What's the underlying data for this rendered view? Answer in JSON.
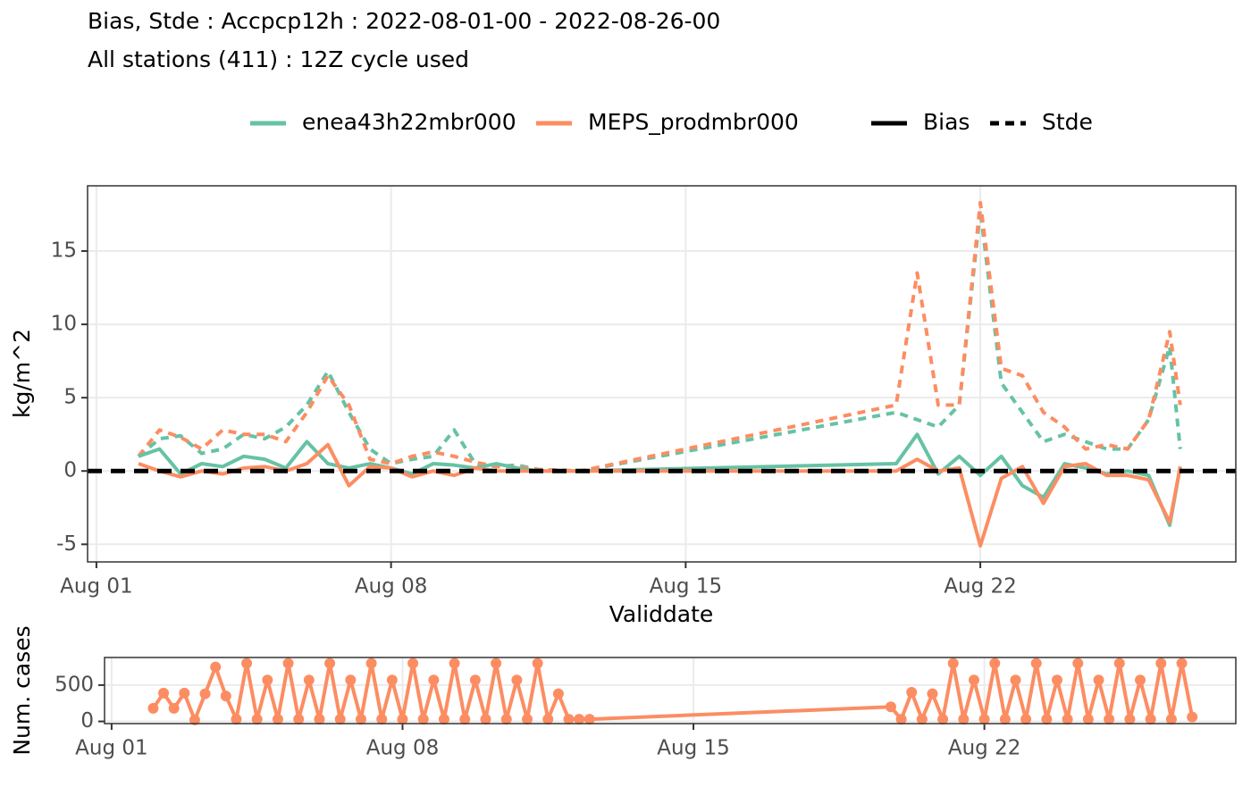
{
  "chart_data": [
    {
      "type": "line",
      "title": "Bias, Stde : Accpcp12h : 2022-08-01-00 - 2022-08-26-00",
      "subtitle": "All stations (411) : 12Z cycle used",
      "x_label": "Validdate",
      "y_label": "kg/m^2",
      "metrics": [
        "Bias",
        "Stde"
      ],
      "dashed": [
        false,
        true
      ],
      "hline": 0,
      "x": [
        2,
        2.5,
        3,
        3.5,
        4,
        4.5,
        5,
        5.5,
        6,
        6.5,
        7,
        7.5,
        8,
        8.5,
        9,
        9.5,
        10,
        10.5,
        11,
        11.5,
        12.5,
        20,
        20.5,
        21,
        21.5,
        22,
        22.5,
        23,
        23.5,
        24,
        24.5,
        25,
        25.5,
        26,
        26.5,
        26.75
      ],
      "series": [
        {
          "name": "enea43h22mbr000",
          "color": "#66c2a5",
          "values": [
            [
              1,
              1.5,
              -0.2,
              0.5,
              0.3,
              1,
              0.8,
              0.2,
              2,
              0.5,
              0.2,
              0.5,
              0.2,
              -0.2,
              0.5,
              0.4,
              0.2,
              0.5,
              0.2,
              0,
              0,
              0.5,
              2.5,
              -0.2,
              1,
              -0.3,
              1,
              -1,
              -1.8,
              0.5,
              0.2,
              -0.2,
              0,
              -0.3,
              -3.7,
              0.3
            ],
            [
              1,
              2.2,
              2.4,
              1.2,
              1.5,
              2.5,
              2.2,
              3,
              4.5,
              6.8,
              4,
              1.5,
              0.5,
              0.8,
              1,
              2.8,
              0.5,
              0.3,
              0.4,
              0.1,
              0,
              4,
              3.5,
              3,
              4.5,
              17.8,
              6,
              4,
              2,
              2.5,
              2,
              1.5,
              1.5,
              3.5,
              8.5,
              1.5
            ]
          ]
        },
        {
          "name": "MEPS_prodmbr000",
          "color": "#fc8d62",
          "values": [
            [
              0.5,
              0,
              -0.4,
              0,
              -0.2,
              0.2,
              0.3,
              0,
              0.5,
              1.8,
              -1,
              0.3,
              0.2,
              -0.4,
              0,
              -0.3,
              0.2,
              0,
              0,
              0,
              0,
              0,
              0.8,
              0,
              0.2,
              -5.1,
              -0.5,
              0.3,
              -2.2,
              0.3,
              0.5,
              -0.3,
              -0.3,
              -0.6,
              -3.5,
              0.3
            ],
            [
              1,
              2.8,
              2.3,
              1.5,
              2.8,
              2.5,
              2.5,
              2,
              4,
              6.5,
              4.5,
              0.8,
              0.5,
              1,
              1.3,
              1,
              0.6,
              0.3,
              0.3,
              0.1,
              0,
              4.5,
              13.5,
              4.5,
              4.5,
              18.3,
              7,
              6.5,
              4,
              3,
              1.5,
              1.8,
              1.5,
              3.5,
              9.5,
              4.5
            ]
          ]
        }
      ],
      "xlim": [
        0.79,
        28.07
      ],
      "xticks": [
        {
          "value": 1,
          "label": "Aug 01"
        },
        {
          "value": 8,
          "label": "Aug 08"
        },
        {
          "value": 15,
          "label": "Aug 15"
        },
        {
          "value": 22,
          "label": "Aug 22"
        }
      ],
      "ylim": [
        -6.2,
        19.45
      ],
      "yticks": [
        -5,
        0,
        5,
        10,
        15
      ],
      "grid": true
    },
    {
      "type": "line",
      "markers": true,
      "y_label": "Num. cases",
      "color": "#fc8d62",
      "x": [
        2,
        2.25,
        2.5,
        2.75,
        3,
        3.25,
        3.5,
        3.75,
        4,
        4.25,
        4.5,
        4.75,
        5,
        5.25,
        5.5,
        5.75,
        6,
        6.25,
        6.5,
        6.75,
        7,
        7.25,
        7.5,
        7.75,
        8,
        8.25,
        8.5,
        8.75,
        9,
        9.25,
        9.5,
        9.75,
        10,
        10.25,
        10.5,
        10.75,
        11,
        11.25,
        11.5,
        11.75,
        12,
        12.25,
        12.5,
        19.75,
        20,
        20.25,
        20.5,
        20.75,
        21,
        21.25,
        21.5,
        21.75,
        22,
        22.25,
        22.5,
        22.75,
        23,
        23.25,
        23.5,
        23.75,
        24,
        24.25,
        24.5,
        24.75,
        25,
        25.25,
        25.5,
        25.75,
        26,
        26.25,
        26.5,
        26.75,
        27
      ],
      "values": [
        180,
        390,
        180,
        390,
        20,
        380,
        750,
        350,
        30,
        800,
        30,
        570,
        30,
        800,
        30,
        570,
        30,
        800,
        30,
        570,
        30,
        800,
        30,
        570,
        30,
        800,
        30,
        570,
        30,
        800,
        30,
        570,
        30,
        800,
        30,
        570,
        30,
        800,
        30,
        380,
        30,
        30,
        30,
        200,
        30,
        400,
        30,
        380,
        30,
        800,
        30,
        570,
        30,
        800,
        30,
        570,
        30,
        800,
        30,
        570,
        30,
        800,
        30,
        570,
        30,
        800,
        30,
        570,
        30,
        800,
        30,
        800,
        60
      ],
      "xlim": [
        0.83,
        28.05
      ],
      "xticks": [
        {
          "value": 1,
          "label": "Aug 01"
        },
        {
          "value": 8,
          "label": "Aug 08"
        },
        {
          "value": 15,
          "label": "Aug 15"
        },
        {
          "value": 22,
          "label": "Aug 22"
        }
      ],
      "ylim": [
        -30,
        880
      ],
      "yticks": [
        0,
        500
      ],
      "grid": true
    }
  ]
}
